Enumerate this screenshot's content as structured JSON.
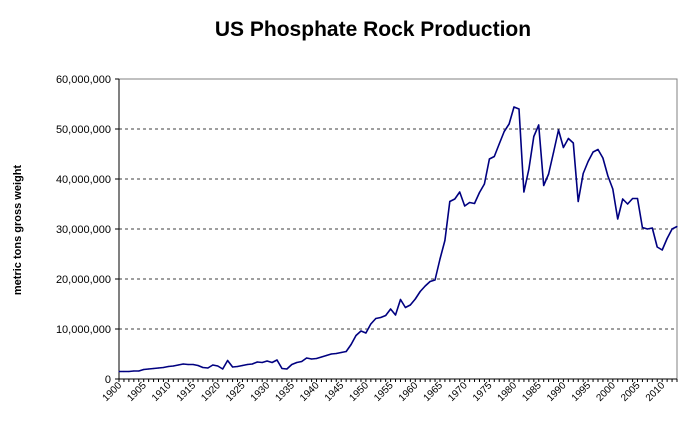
{
  "chart_data": {
    "type": "line",
    "title": "US Phosphate Rock Production",
    "xlabel": "",
    "ylabel": "metric tons gross weight",
    "xlim": [
      1900,
      2013
    ],
    "ylim": [
      0,
      60000000
    ],
    "y_ticks": [
      0,
      10000000,
      20000000,
      30000000,
      40000000,
      50000000,
      60000000
    ],
    "y_tick_labels": [
      "0",
      "10,000,000",
      "20,000,000",
      "30,000,000",
      "40,000,000",
      "50,000,000",
      "60,000,000"
    ],
    "x_tick_labels": [
      "1900",
      "1905",
      "1910",
      "1915",
      "1920",
      "1925",
      "1930",
      "1935",
      "1940",
      "1945",
      "1950",
      "1955",
      "1960",
      "1965",
      "1970",
      "1975",
      "1980",
      "1985",
      "1990",
      "1995",
      "2000",
      "2005",
      "2010"
    ],
    "grid": "horizontal-dashed",
    "line_color": "#000080",
    "series": [
      {
        "x": [
          1900,
          1901,
          1902,
          1903,
          1904,
          1905,
          1906,
          1907,
          1908,
          1909,
          1910,
          1911,
          1912,
          1913,
          1914,
          1915,
          1916,
          1917,
          1918,
          1919,
          1920,
          1921,
          1922,
          1923,
          1924,
          1925,
          1926,
          1927,
          1928,
          1929,
          1930,
          1931,
          1932,
          1933,
          1934,
          1935,
          1936,
          1937,
          1938,
          1939,
          1940,
          1941,
          1942,
          1943,
          1944,
          1945,
          1946,
          1947,
          1948,
          1949,
          1950,
          1951,
          1952,
          1953,
          1954,
          1955,
          1956,
          1957,
          1958,
          1959,
          1960,
          1961,
          1962,
          1963,
          1964,
          1965,
          1966,
          1967,
          1968,
          1969,
          1970,
          1971,
          1972,
          1973,
          1974,
          1975,
          1976,
          1977,
          1978,
          1979,
          1980,
          1981,
          1982,
          1983,
          1984,
          1985,
          1986,
          1987,
          1988,
          1989,
          1990,
          1991,
          1992,
          1993,
          1994,
          1995,
          1996,
          1997,
          1998,
          1999,
          2000,
          2001,
          2002,
          2003,
          2004,
          2005,
          2006,
          2007,
          2008,
          2009,
          2010,
          2011,
          2012,
          2013
        ],
        "values": [
          1500000,
          1500000,
          1500000,
          1600000,
          1600000,
          1900000,
          2000000,
          2100000,
          2200000,
          2300000,
          2500000,
          2600000,
          2800000,
          3000000,
          2900000,
          2900000,
          2700000,
          2300000,
          2200000,
          2800000,
          2600000,
          2000000,
          3700000,
          2400000,
          2500000,
          2700000,
          2900000,
          3000000,
          3400000,
          3300000,
          3600000,
          3300000,
          3800000,
          2100000,
          2000000,
          2900000,
          3300000,
          3500000,
          4200000,
          4000000,
          4100000,
          4400000,
          4700000,
          5000000,
          5100000,
          5300000,
          5500000,
          6900000,
          8700000,
          9600000,
          9200000,
          11000000,
          12100000,
          12300000,
          12700000,
          14000000,
          12800000,
          15900000,
          14300000,
          14800000,
          16000000,
          17500000,
          18600000,
          19500000,
          19800000,
          24000000,
          27700000,
          35500000,
          36000000,
          37400000,
          34600000,
          35300000,
          35100000,
          37300000,
          39000000,
          44000000,
          44500000,
          47000000,
          49500000,
          51000000,
          54400000,
          54000000,
          37400000,
          42000000,
          48500000,
          50800000,
          38700000,
          41000000,
          45300000,
          49800000,
          46300000,
          48100000,
          47200000,
          35500000,
          41100000,
          43500000,
          45400000,
          45900000,
          44200000,
          40600000,
          38000000,
          32000000,
          36000000,
          35000000,
          36100000,
          36100000,
          30300000,
          30000000,
          30200000,
          26400000,
          25800000,
          28100000,
          30000000,
          30500000
        ]
      }
    ]
  }
}
